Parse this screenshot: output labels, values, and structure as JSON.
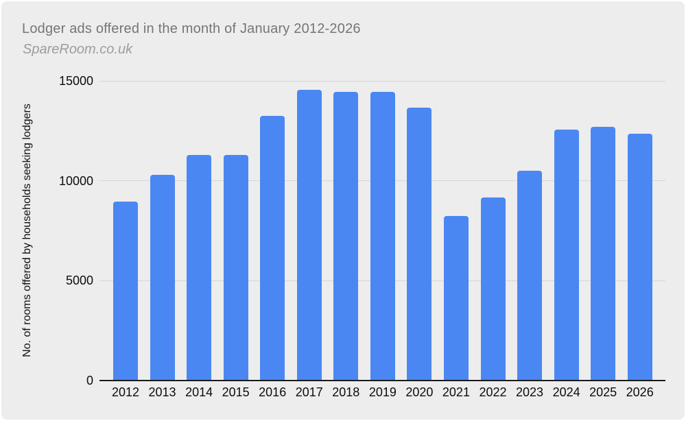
{
  "header": {
    "title": "Lodger ads offered in the month of January 2012-2026",
    "subtitle": "SpareRoom.co.uk"
  },
  "chart_data": {
    "type": "bar",
    "title": "Lodger ads offered in the month of January 2012-2026",
    "subtitle": "SpareRoom.co.uk",
    "categories": [
      "2012",
      "2013",
      "2014",
      "2015",
      "2016",
      "2017",
      "2018",
      "2019",
      "2020",
      "2021",
      "2022",
      "2023",
      "2024",
      "2025",
      "2026"
    ],
    "values": [
      8950,
      10300,
      11300,
      11300,
      13250,
      14550,
      14450,
      14450,
      13650,
      8250,
      9150,
      10500,
      12550,
      12700,
      12350
    ],
    "xlabel": "",
    "ylabel": "No. of rooms offered by households seeking lodgers",
    "ylim": [
      0,
      15000
    ],
    "yticks": [
      0,
      5000,
      10000,
      15000
    ],
    "grid": true,
    "legend": false,
    "colors": {
      "bar": "#4a87f2",
      "background": "#ededed",
      "gridline": "#d6d6d6",
      "axis": "#1a1a1a",
      "title": "#757575",
      "subtitle": "#9d9d9d",
      "tick_label": "#0c0c0c"
    }
  }
}
